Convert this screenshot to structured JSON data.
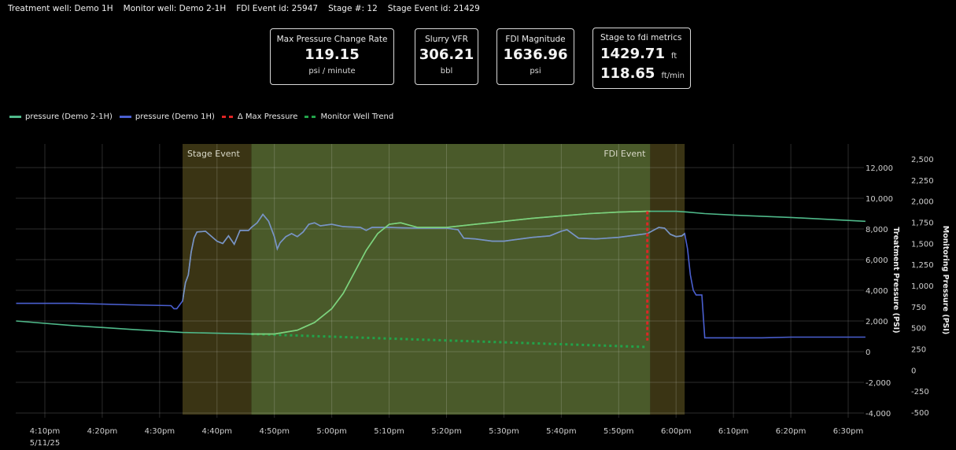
{
  "header": {
    "treatment_well": "Treatment well: Demo 1H",
    "monitor_well": "Monitor well: Demo 2-1H",
    "fdi_event_id": "FDI Event id: 25947",
    "stage_number": "Stage #: 12",
    "stage_event_id": "Stage Event id: 21429"
  },
  "metrics": [
    {
      "label": "Max Pressure Change Rate",
      "value": "119.15",
      "unit": "psi / minute"
    },
    {
      "label": "Slurry VFR",
      "value": "306.21",
      "unit": "bbl"
    },
    {
      "label": "FDI Magnitude",
      "value": "1636.96",
      "unit": "psi"
    },
    {
      "label": "Stage to fdi metrics",
      "value": "1429.71",
      "unit": "ft",
      "value2": "118.65",
      "unit2": "ft/min"
    }
  ],
  "legend": [
    {
      "label": "pressure (Demo 2-1H)",
      "color": "#4fb98a",
      "style": "solid"
    },
    {
      "label": "pressure (Demo 1H)",
      "color": "#4a5fd0",
      "style": "solid"
    },
    {
      "label": "Δ Max Pressure",
      "color": "#e02424",
      "style": "dashed"
    },
    {
      "label": "Monitor Well Trend",
      "color": "#22a34a",
      "style": "dashed"
    }
  ],
  "bands": {
    "stage_event_label": "Stage Event",
    "fdi_event_label": "FDI Event"
  },
  "colors": {
    "background": "#000000",
    "grid": "#3a3a3a",
    "band_dark": "#3a3414",
    "band_green": "#4a5a2a",
    "monitor_line": "#4fb98a",
    "treatment_line": "#4a5fd0",
    "delta_max": "#e02424",
    "trend": "#22a34a"
  },
  "chart_data": {
    "type": "line",
    "title": "",
    "xlabel": "",
    "x_ticks": [
      "4:10pm",
      "4:20pm",
      "4:30pm",
      "4:40pm",
      "4:50pm",
      "5:00pm",
      "5:10pm",
      "5:20pm",
      "5:30pm",
      "5:40pm",
      "5:50pm",
      "6:00pm",
      "6:10pm",
      "6:20pm",
      "6:30pm"
    ],
    "x_date_label": "5/11/25",
    "x_range_minutes_from_4pm": [
      5,
      153
    ],
    "ylabel_left": "Treatment Pressure (PSI)",
    "ylabel_right": "Monitoring Pressure (PSI)",
    "y_left_ticks": [
      "12,000",
      "10,000",
      "8,000",
      "6,000",
      "4,000",
      "2,000",
      "0",
      "-2,000",
      "-4,000"
    ],
    "y_left_range": [
      -4000,
      12000
    ],
    "y_right_ticks": [
      "2,500",
      "2,250",
      "2,000",
      "1,750",
      "1,500",
      "1,250",
      "1,000",
      "750",
      "500",
      "250",
      "0",
      "-250",
      "-500"
    ],
    "y_right_range": [
      -500,
      2500
    ],
    "grid": true,
    "legend_position": "top-left",
    "events": [
      {
        "name": "Stage Event",
        "start_min": 34,
        "end_min": 46
      },
      {
        "name": "FDI Event",
        "start_min": 115.5,
        "end_min": 121.5
      }
    ],
    "delta_max_pressure": {
      "x_min": 115,
      "y_from": 1700,
      "y_to": 9150
    },
    "series": [
      {
        "name": "pressure (Demo 1H)",
        "axis": "left",
        "points": [
          [
            5,
            3150
          ],
          [
            15,
            3150
          ],
          [
            25,
            3050
          ],
          [
            32,
            3000
          ],
          [
            32.5,
            2800
          ],
          [
            33,
            2800
          ],
          [
            34,
            3300
          ],
          [
            34.5,
            4500
          ],
          [
            35,
            5000
          ],
          [
            35.5,
            6500
          ],
          [
            36,
            7400
          ],
          [
            36.5,
            7800
          ],
          [
            38,
            7850
          ],
          [
            40,
            7200
          ],
          [
            41,
            7050
          ],
          [
            42,
            7550
          ],
          [
            43,
            7000
          ],
          [
            44,
            7900
          ],
          [
            45.5,
            7900
          ],
          [
            46,
            8100
          ],
          [
            47,
            8400
          ],
          [
            48,
            8950
          ],
          [
            49,
            8500
          ],
          [
            50,
            7500
          ],
          [
            50.5,
            6700
          ],
          [
            51,
            7100
          ],
          [
            52,
            7500
          ],
          [
            53,
            7700
          ],
          [
            54,
            7500
          ],
          [
            55,
            7800
          ],
          [
            56,
            8300
          ],
          [
            57,
            8400
          ],
          [
            58,
            8200
          ],
          [
            60,
            8300
          ],
          [
            62,
            8150
          ],
          [
            65,
            8100
          ],
          [
            66,
            7900
          ],
          [
            67,
            8100
          ],
          [
            70,
            8100
          ],
          [
            75,
            8050
          ],
          [
            80,
            8050
          ],
          [
            82,
            7950
          ],
          [
            83,
            7400
          ],
          [
            85,
            7350
          ],
          [
            88,
            7200
          ],
          [
            90,
            7200
          ],
          [
            92,
            7300
          ],
          [
            95,
            7450
          ],
          [
            98,
            7550
          ],
          [
            100,
            7850
          ],
          [
            101,
            7950
          ],
          [
            103,
            7400
          ],
          [
            106,
            7350
          ],
          [
            110,
            7450
          ],
          [
            113,
            7600
          ],
          [
            115,
            7700
          ],
          [
            116,
            7900
          ],
          [
            117,
            8100
          ],
          [
            118,
            8050
          ],
          [
            119,
            7650
          ],
          [
            120,
            7500
          ],
          [
            121,
            7550
          ],
          [
            121.5,
            7700
          ],
          [
            122,
            6700
          ],
          [
            122.5,
            5000
          ],
          [
            123,
            4000
          ],
          [
            123.5,
            3700
          ],
          [
            124.5,
            3700
          ],
          [
            125,
            900
          ],
          [
            135,
            900
          ],
          [
            140,
            950
          ],
          [
            153,
            950
          ]
        ]
      },
      {
        "name": "pressure (Demo 2-1H)",
        "axis": "left",
        "points": [
          [
            5,
            2000
          ],
          [
            15,
            1700
          ],
          [
            25,
            1450
          ],
          [
            34,
            1250
          ],
          [
            40,
            1200
          ],
          [
            46,
            1150
          ],
          [
            50,
            1150
          ],
          [
            54,
            1400
          ],
          [
            57,
            1900
          ],
          [
            60,
            2800
          ],
          [
            62,
            3800
          ],
          [
            64,
            5200
          ],
          [
            66,
            6600
          ],
          [
            68,
            7700
          ],
          [
            70,
            8300
          ],
          [
            72,
            8400
          ],
          [
            75,
            8100
          ],
          [
            80,
            8100
          ],
          [
            85,
            8300
          ],
          [
            90,
            8500
          ],
          [
            95,
            8700
          ],
          [
            100,
            8850
          ],
          [
            105,
            9000
          ],
          [
            110,
            9100
          ],
          [
            115,
            9150
          ],
          [
            120,
            9150
          ],
          [
            122,
            9100
          ],
          [
            125,
            9000
          ],
          [
            130,
            8900
          ],
          [
            140,
            8750
          ],
          [
            153,
            8500
          ]
        ]
      },
      {
        "name": "Monitor Well Trend",
        "axis": "left",
        "points": [
          [
            46,
            1150
          ],
          [
            115,
            300
          ]
        ]
      }
    ]
  }
}
